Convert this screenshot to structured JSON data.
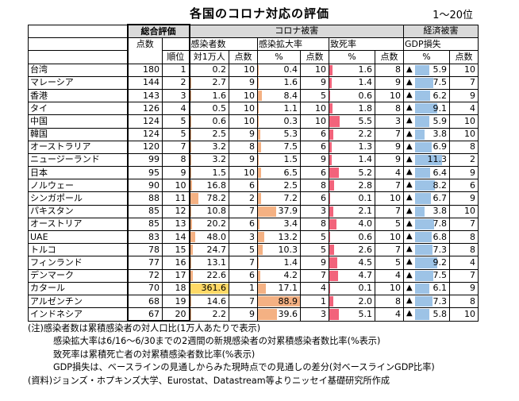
{
  "title": "各国のコロナ対応の評価",
  "range": "1～20位",
  "headers": {
    "overall": "総合評価",
    "corona": "コロナ被害",
    "economy": "経済被害",
    "score": "点数",
    "rank": "順位",
    "cases": "感染者数",
    "per10k": "対1万人",
    "spread": "感染拡大率",
    "percent": "%",
    "death": "致死率",
    "gdp": "GDP損失"
  },
  "triangle": "▲",
  "rows": [
    {
      "country": "台湾",
      "total": "180",
      "rank": "1",
      "cases": "0.2",
      "cases_pt": "10",
      "spread": "0.4",
      "spread_pt": "10",
      "death": "1.6",
      "death_pt": "8",
      "gdp": "5.9",
      "gdp_pt": "10"
    },
    {
      "country": "マレーシア",
      "total": "144",
      "rank": "2",
      "cases": "2.7",
      "cases_pt": "9",
      "spread": "1.6",
      "spread_pt": "9",
      "death": "1.4",
      "death_pt": "9",
      "gdp": "7.5",
      "gdp_pt": "7"
    },
    {
      "country": "香港",
      "total": "143",
      "rank": "3",
      "cases": "1.6",
      "cases_pt": "10",
      "spread": "8.4",
      "spread_pt": "5",
      "death": "0.6",
      "death_pt": "10",
      "gdp": "6.2",
      "gdp_pt": "9"
    },
    {
      "country": "タイ",
      "total": "126",
      "rank": "4",
      "cases": "0.5",
      "cases_pt": "10",
      "spread": "1.1",
      "spread_pt": "10",
      "death": "1.8",
      "death_pt": "8",
      "gdp": "9.1",
      "gdp_pt": "4"
    },
    {
      "country": "中国",
      "total": "124",
      "rank": "5",
      "cases": "0.6",
      "cases_pt": "10",
      "spread": "0.3",
      "spread_pt": "10",
      "death": "5.5",
      "death_pt": "3",
      "gdp": "5.9",
      "gdp_pt": "10"
    },
    {
      "country": "韓国",
      "total": "124",
      "rank": "5",
      "cases": "2.5",
      "cases_pt": "9",
      "spread": "5.3",
      "spread_pt": "6",
      "death": "2.2",
      "death_pt": "7",
      "gdp": "3.8",
      "gdp_pt": "10"
    },
    {
      "country": "オーストラリア",
      "total": "120",
      "rank": "7",
      "cases": "3.2",
      "cases_pt": "8",
      "spread": "7.5",
      "spread_pt": "6",
      "death": "1.3",
      "death_pt": "9",
      "gdp": "6.9",
      "gdp_pt": "8"
    },
    {
      "country": "ニュージーランド",
      "total": "99",
      "rank": "8",
      "cases": "3.2",
      "cases_pt": "9",
      "spread": "1.5",
      "spread_pt": "9",
      "death": "1.4",
      "death_pt": "9",
      "gdp": "11.3",
      "gdp_pt": "2"
    },
    {
      "country": "日本",
      "total": "95",
      "rank": "9",
      "cases": "1.5",
      "cases_pt": "10",
      "spread": "6.5",
      "spread_pt": "6",
      "death": "5.2",
      "death_pt": "4",
      "gdp": "6.4",
      "gdp_pt": "9"
    },
    {
      "country": "ノルウェー",
      "total": "90",
      "rank": "10",
      "cases": "16.8",
      "cases_pt": "6",
      "spread": "2.5",
      "spread_pt": "8",
      "death": "2.8",
      "death_pt": "7",
      "gdp": "8.2",
      "gdp_pt": "6"
    },
    {
      "country": "シンガポール",
      "total": "88",
      "rank": "11",
      "cases": "78.2",
      "cases_pt": "2",
      "spread": "7.2",
      "spread_pt": "6",
      "death": "0.1",
      "death_pt": "10",
      "gdp": "6.7",
      "gdp_pt": "9"
    },
    {
      "country": "パキスタン",
      "total": "85",
      "rank": "12",
      "cases": "10.8",
      "cases_pt": "7",
      "spread": "37.9",
      "spread_pt": "3",
      "death": "2.1",
      "death_pt": "7",
      "gdp": "3.8",
      "gdp_pt": "10"
    },
    {
      "country": "オーストリア",
      "total": "85",
      "rank": "13",
      "cases": "20.2",
      "cases_pt": "6",
      "spread": "3.4",
      "spread_pt": "8",
      "death": "4.0",
      "death_pt": "5",
      "gdp": "7.8",
      "gdp_pt": "7"
    },
    {
      "country": "UAE",
      "total": "83",
      "rank": "14",
      "cases": "48.0",
      "cases_pt": "3",
      "spread": "13.2",
      "spread_pt": "5",
      "death": "0.6",
      "death_pt": "10",
      "gdp": "6.8",
      "gdp_pt": "8"
    },
    {
      "country": "トルコ",
      "total": "78",
      "rank": "15",
      "cases": "24.7",
      "cases_pt": "5",
      "spread": "10.3",
      "spread_pt": "5",
      "death": "2.6",
      "death_pt": "7",
      "gdp": "7.3",
      "gdp_pt": "8"
    },
    {
      "country": "フィンランド",
      "total": "77",
      "rank": "16",
      "cases": "13.1",
      "cases_pt": "7",
      "spread": "1.4",
      "spread_pt": "9",
      "death": "4.5",
      "death_pt": "5",
      "gdp": "9.2",
      "gdp_pt": "4"
    },
    {
      "country": "デンマーク",
      "total": "72",
      "rank": "17",
      "cases": "22.6",
      "cases_pt": "6",
      "spread": "4.2",
      "spread_pt": "7",
      "death": "4.7",
      "death_pt": "4",
      "gdp": "7.5",
      "gdp_pt": "7"
    },
    {
      "country": "カタール",
      "total": "70",
      "rank": "18",
      "cases": "361.6",
      "cases_pt": "1",
      "spread": "17.1",
      "spread_pt": "4",
      "death": "0.1",
      "death_pt": "10",
      "gdp": "6.1",
      "gdp_pt": "9"
    },
    {
      "country": "アルゼンチン",
      "total": "68",
      "rank": "19",
      "cases": "14.6",
      "cases_pt": "7",
      "spread": "88.9",
      "spread_pt": "1",
      "death": "2.0",
      "death_pt": "8",
      "gdp": "7.3",
      "gdp_pt": "8"
    },
    {
      "country": "インドネシア",
      "total": "67",
      "rank": "20",
      "cases": "2.2",
      "cases_pt": "9",
      "spread": "39.6",
      "spread_pt": "3",
      "death": "5.1",
      "death_pt": "4",
      "gdp": "5.8",
      "gdp_pt": "10"
    }
  ],
  "bars": {
    "cases_max": 361.6,
    "spread_max": 88.9,
    "death_max": 5.5,
    "gdp_max": 11.3,
    "cases_color": "#f4b183",
    "cases_highlight_color": "#ffd966",
    "spread_color": "#f4b183",
    "death_color": "#f2637b",
    "gdp_color": "#9dc3e6"
  },
  "notes": [
    "(注)感染者数は累積感染者の対人口比(1万人あたりで表示)",
    "感染拡大率は6/16～6/30までの2週間の新規感染者の対累積感染者数比率(%表示)",
    "致死率は累積死亡者の対累積感染者数比率(%表示)",
    "GDP損失は、ベースラインの見通しからみた現時点での見通しの差分(対ベースラインGDP比率)",
    "(資料)ジョンズ・ホプキンズ大学、Eurostat、Datastream等よりニッセイ基礎研究所作成"
  ]
}
